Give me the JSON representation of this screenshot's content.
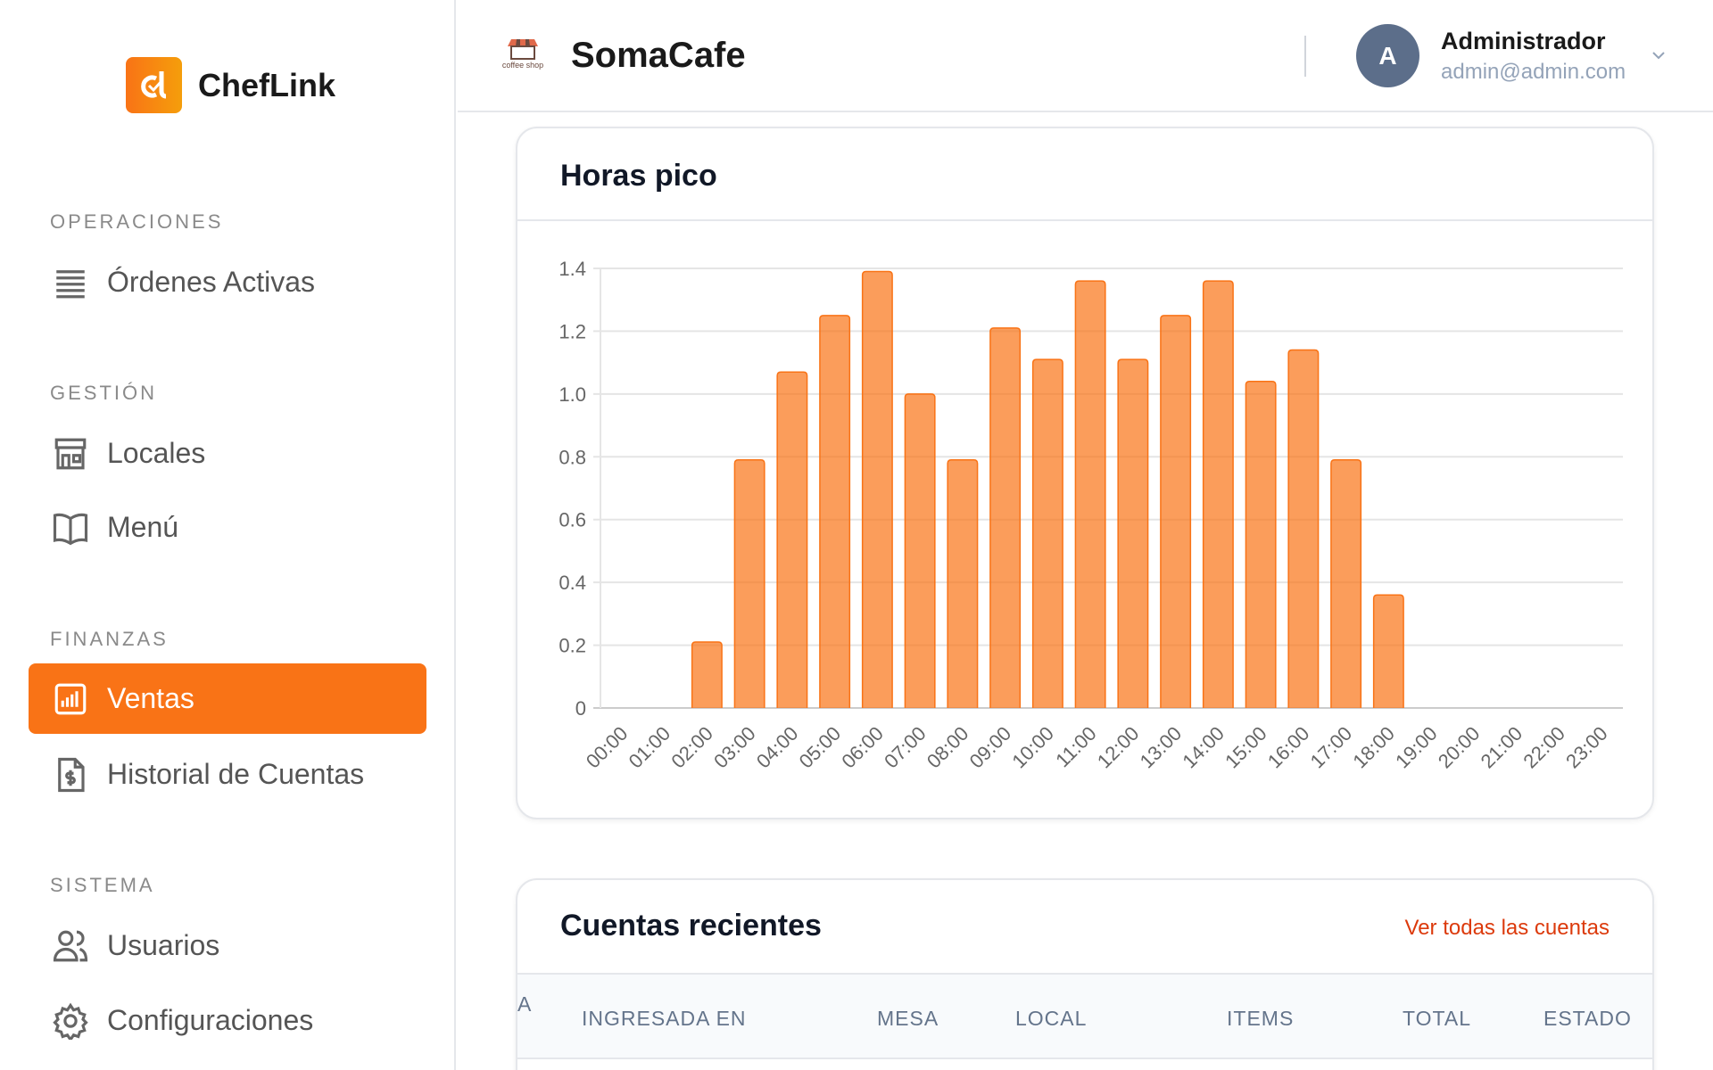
{
  "sidebar": {
    "brand": "ChefLink",
    "sections": [
      {
        "title": "OPERACIONES",
        "items": [
          {
            "label": "Órdenes Activas",
            "icon": "list-icon"
          }
        ]
      },
      {
        "title": "GESTIÓN",
        "items": [
          {
            "label": "Locales",
            "icon": "store-icon"
          },
          {
            "label": "Menú",
            "icon": "book-icon"
          }
        ]
      },
      {
        "title": "FINANZAS",
        "items": [
          {
            "label": "Ventas",
            "icon": "bar-chart-icon",
            "active": true
          },
          {
            "label": "Historial de Cuentas",
            "icon": "invoice-dollar-icon"
          }
        ]
      },
      {
        "title": "SISTEMA",
        "items": [
          {
            "label": "Usuarios",
            "icon": "users-icon"
          },
          {
            "label": "Configuraciones",
            "icon": "gear-icon"
          }
        ]
      }
    ]
  },
  "header": {
    "shop_name": "SomaCafe",
    "shop_logo_text": "coffee shop",
    "user": {
      "initial": "A",
      "name": "Administrador",
      "email": "admin@admin.com"
    }
  },
  "colors": {
    "accent": "#f97316",
    "link": "#dc3a0c"
  },
  "peak_card": {
    "title": "Horas pico"
  },
  "chart_data": {
    "type": "bar",
    "title": "",
    "categories": [
      "00:00",
      "01:00",
      "02:00",
      "03:00",
      "04:00",
      "05:00",
      "06:00",
      "07:00",
      "08:00",
      "09:00",
      "10:00",
      "11:00",
      "12:00",
      "13:00",
      "14:00",
      "15:00",
      "16:00",
      "17:00",
      "18:00",
      "19:00",
      "20:00",
      "21:00",
      "22:00",
      "23:00"
    ],
    "values": [
      0,
      0,
      0.21,
      0.79,
      1.07,
      1.25,
      1.39,
      1.0,
      0.79,
      1.21,
      1.11,
      1.36,
      1.11,
      1.25,
      1.36,
      1.04,
      1.14,
      0.79,
      0.36,
      0,
      0,
      0,
      0,
      0
    ],
    "yticks": [
      "0",
      "0.2",
      "0.4",
      "0.6",
      "0.8",
      "1.0",
      "1.2",
      "1.4"
    ],
    "ylim": [
      0,
      1.4
    ],
    "grid": true,
    "legend": "none",
    "bar_color": "#f97316"
  },
  "accounts_card": {
    "title": "Cuentas recientes",
    "link": "Ver todas las cuentas",
    "columns": [
      "A",
      "INGRESADA EN",
      "MESA",
      "LOCAL",
      "ITEMS",
      "TOTAL",
      "ESTADO"
    ]
  }
}
